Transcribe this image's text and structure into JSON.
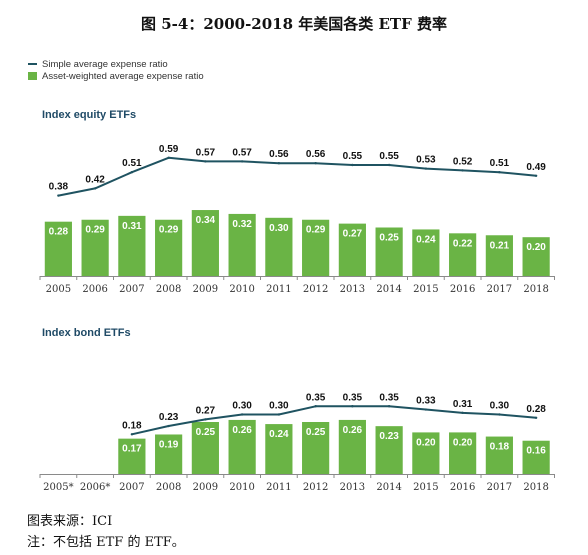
{
  "title": "图 5-4：2000-2018 年美国各类 ETF 费率",
  "legend": {
    "simple": "Simple average expense ratio",
    "weighted": "Asset-weighted average expense ratio"
  },
  "colors": {
    "line": "#1f5361",
    "bar": "#6ab445",
    "axis": "#8a8a8a"
  },
  "chart_data": [
    {
      "type": "bar",
      "title": "Index equity ETFs",
      "categories": [
        "2005",
        "2006",
        "2007",
        "2008",
        "2009",
        "2010",
        "2011",
        "2012",
        "2013",
        "2014",
        "2015",
        "2016",
        "2017",
        "2018"
      ],
      "series": [
        {
          "name": "Simple average expense ratio",
          "kind": "line",
          "values": [
            0.38,
            0.42,
            0.51,
            0.59,
            0.57,
            0.57,
            0.56,
            0.56,
            0.55,
            0.55,
            0.53,
            0.52,
            0.51,
            0.49
          ]
        },
        {
          "name": "Asset-weighted average expense ratio",
          "kind": "bar",
          "values": [
            0.28,
            0.29,
            0.31,
            0.29,
            0.34,
            0.32,
            0.3,
            0.29,
            0.27,
            0.25,
            0.24,
            0.22,
            0.21,
            0.2
          ]
        }
      ],
      "grid": false,
      "legend": "top-left"
    },
    {
      "type": "bar",
      "title": "Index bond ETFs",
      "categories": [
        "2005*",
        "2006*",
        "2007",
        "2008",
        "2009",
        "2010",
        "2011",
        "2012",
        "2013",
        "2014",
        "2015",
        "2016",
        "2017",
        "2018"
      ],
      "series": [
        {
          "name": "Simple average expense ratio",
          "kind": "line",
          "values": [
            null,
            null,
            0.18,
            0.23,
            0.27,
            0.3,
            0.3,
            0.35,
            0.35,
            0.35,
            0.33,
            0.31,
            0.3,
            0.28
          ]
        },
        {
          "name": "Asset-weighted average expense ratio",
          "kind": "bar",
          "values": [
            null,
            null,
            0.17,
            0.19,
            0.25,
            0.26,
            0.24,
            0.25,
            0.26,
            0.23,
            0.2,
            0.2,
            0.18,
            0.16
          ]
        }
      ],
      "grid": false,
      "legend": "top-left"
    }
  ],
  "notes": {
    "source": "图表来源：ICI",
    "note": "注：不包括 ETF 的 ETF。"
  }
}
